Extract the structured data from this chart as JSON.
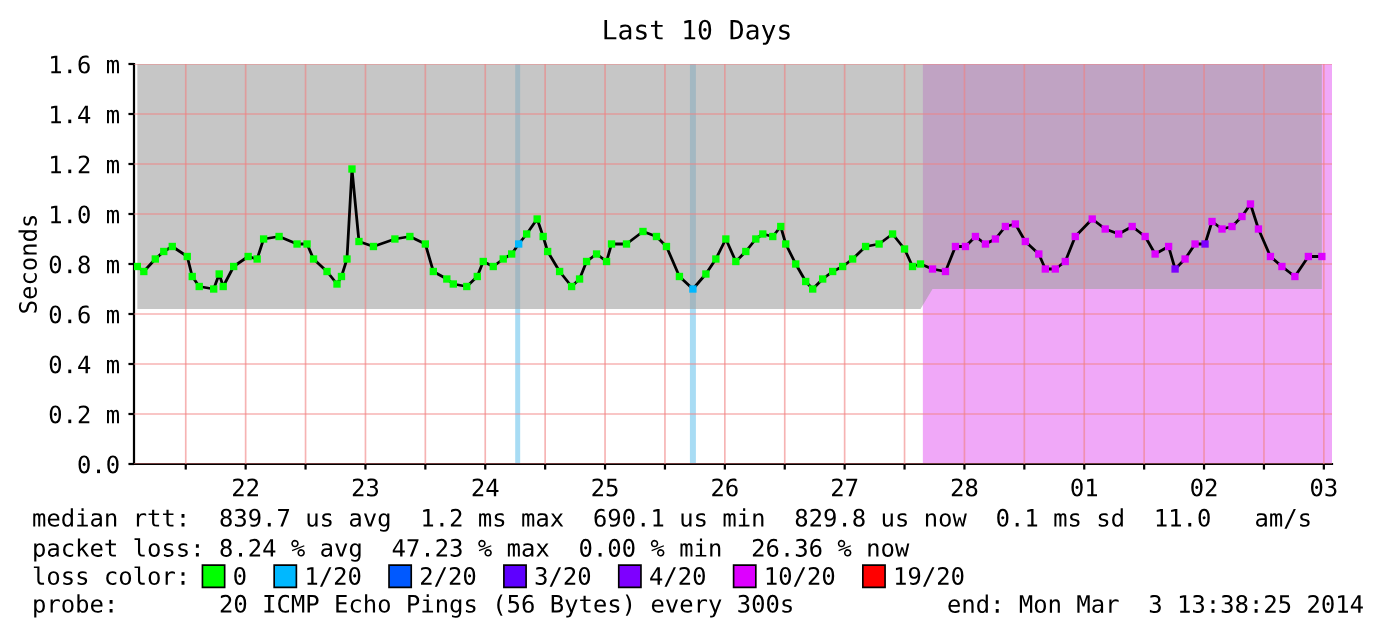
{
  "chart_data": {
    "type": "line",
    "title": "Last 10 Days",
    "ylabel": "Seconds",
    "xlim": [
      "2014-02-21T13:38",
      "2014-03-03T13:38"
    ],
    "xticks": [
      {
        "value": "2014-02-22T00:00",
        "label": null
      },
      {
        "value": "2014-02-22T12:00",
        "label": "22"
      },
      {
        "value": "2014-02-23T00:00",
        "label": null
      },
      {
        "value": "2014-02-23T12:00",
        "label": "23"
      },
      {
        "value": "2014-02-24T00:00",
        "label": null
      },
      {
        "value": "2014-02-24T12:00",
        "label": "24"
      },
      {
        "value": "2014-02-25T00:00",
        "label": null
      },
      {
        "value": "2014-02-25T12:00",
        "label": "25"
      },
      {
        "value": "2014-02-26T00:00",
        "label": null
      },
      {
        "value": "2014-02-26T12:00",
        "label": "26"
      },
      {
        "value": "2014-02-27T00:00",
        "label": null
      },
      {
        "value": "2014-02-27T12:00",
        "label": "27"
      },
      {
        "value": "2014-02-28T00:00",
        "label": null
      },
      {
        "value": "2014-02-28T12:00",
        "label": "28"
      },
      {
        "value": "2014-03-01T00:00",
        "label": null
      },
      {
        "value": "2014-03-01T12:00",
        "label": "01"
      },
      {
        "value": "2014-03-02T00:00",
        "label": null
      },
      {
        "value": "2014-03-02T12:00",
        "label": "02"
      },
      {
        "value": "2014-03-03T00:00",
        "label": null
      },
      {
        "value": "2014-03-03T12:00",
        "label": "03"
      }
    ],
    "ylim": [
      0,
      1.6
    ],
    "yticks": [
      {
        "value": 0,
        "label": "0.0"
      },
      {
        "value": 0.2,
        "label": "0.2 m"
      },
      {
        "value": 0.4,
        "label": "0.4 m"
      },
      {
        "value": 0.6,
        "label": "0.6 m"
      },
      {
        "value": 0.8,
        "label": "0.8 m"
      },
      {
        "value": 1.0,
        "label": "1.0 m"
      },
      {
        "value": 1.2,
        "label": "1.2 m"
      },
      {
        "value": 1.4,
        "label": "1.4 m"
      },
      {
        "value": 1.6,
        "label": "1.6 m"
      }
    ],
    "grid": true,
    "legend": "bottom",
    "legend_title": "loss color:",
    "bands": [
      {
        "axis": "x",
        "from": "2014-02-24T18:00",
        "to": "2014-02-24T19:00",
        "color": "#a8dcf4"
      },
      {
        "axis": "x",
        "from": "2014-02-26T05:00",
        "to": "2014-02-26T06:12",
        "color": "#a8dcf4"
      },
      {
        "axis": "x",
        "from": "2014-02-28T03:40",
        "to": "2014-03-03T13:38",
        "color": "#f0a8f8"
      }
    ],
    "series": [
      {
        "color": "#000000",
        "x": [
          "2014-02-21T14:18",
          "2014-02-21T15:36",
          "2014-02-21T17:54",
          "2014-02-21T19:36",
          "2014-02-21T21:18",
          "2014-02-22T00:18",
          "2014-02-22T01:18",
          "2014-02-22T02:42",
          "2014-02-22T05:36",
          "2014-02-22T06:42",
          "2014-02-22T07:30",
          "2014-02-22T09:36",
          "2014-02-22T12:30",
          "2014-02-22T14:18",
          "2014-02-22T15:36",
          "2014-02-22T18:42",
          "2014-02-22T22:18",
          "2014-02-23T00:18",
          "2014-02-23T01:36",
          "2014-02-23T04:18",
          "2014-02-23T06:18",
          "2014-02-23T07:12",
          "2014-02-23T08:18",
          "2014-02-23T09:18",
          "2014-02-23T10:42",
          "2014-02-23T13:36",
          "2014-02-23T17:54",
          "2014-02-23T20:54",
          "2014-02-24T00:00",
          "2014-02-24T01:36",
          "2014-02-24T04:18",
          "2014-02-24T05:36",
          "2014-02-24T08:18",
          "2014-02-24T10:24",
          "2014-02-24T11:36",
          "2014-02-24T13:36",
          "2014-02-24T15:36",
          "2014-02-24T17:18",
          "2014-02-24T18:42",
          "2014-02-24T20:18",
          "2014-02-24T22:24",
          "2014-02-24T23:36",
          "2014-02-25T00:30",
          "2014-02-25T02:54",
          "2014-02-25T05:18",
          "2014-02-25T06:54",
          "2014-02-25T08:18",
          "2014-02-25T10:18",
          "2014-02-25T12:18",
          "2014-02-25T13:18",
          "2014-02-25T16:18",
          "2014-02-25T19:36",
          "2014-02-25T22:18",
          "2014-02-26T00:18",
          "2014-02-26T02:54",
          "2014-02-26T05:36",
          "2014-02-26T08:12",
          "2014-02-26T10:12",
          "2014-02-26T12:12",
          "2014-02-26T14:12",
          "2014-02-26T16:12",
          "2014-02-26T18:12",
          "2014-02-26T19:36",
          "2014-02-26T21:36",
          "2014-02-26T23:12",
          "2014-02-27T00:12",
          "2014-02-27T02:12",
          "2014-02-27T04:12",
          "2014-02-27T05:36",
          "2014-02-27T07:36",
          "2014-02-27T09:36",
          "2014-02-27T11:36",
          "2014-02-27T13:36",
          "2014-02-27T16:12",
          "2014-02-27T18:54",
          "2014-02-27T21:36",
          "2014-02-28T00:00",
          "2014-02-28T01:36",
          "2014-02-28T03:12",
          "2014-02-28T05:36",
          "2014-02-28T08:12",
          "2014-02-28T10:12",
          "2014-02-28T12:12",
          "2014-02-28T14:12",
          "2014-02-28T16:12",
          "2014-02-28T18:12",
          "2014-02-28T20:12",
          "2014-02-28T22:12",
          "2014-03-01T00:12",
          "2014-03-01T02:54",
          "2014-03-01T04:12",
          "2014-03-01T06:12",
          "2014-03-01T08:12",
          "2014-03-01T10:12",
          "2014-03-01T13:36",
          "2014-03-01T16:12",
          "2014-03-01T18:54",
          "2014-03-01T21:36",
          "2014-03-02T00:12",
          "2014-03-02T02:12",
          "2014-03-02T04:54",
          "2014-03-02T06:12",
          "2014-03-02T08:12",
          "2014-03-02T10:12",
          "2014-03-02T12:12",
          "2014-03-02T13:36",
          "2014-03-02T15:36",
          "2014-03-02T17:36",
          "2014-03-02T19:36",
          "2014-03-02T21:18",
          "2014-03-02T22:54",
          "2014-03-03T01:18",
          "2014-03-03T03:36",
          "2014-03-03T06:12",
          "2014-03-03T08:54",
          "2014-03-03T11:36"
        ],
        "values": [
          0.79,
          0.77,
          0.82,
          0.85,
          0.87,
          0.83,
          0.75,
          0.71,
          0.7,
          0.76,
          0.71,
          0.79,
          0.83,
          0.82,
          0.9,
          0.91,
          0.88,
          0.88,
          0.82,
          0.77,
          0.72,
          0.75,
          0.82,
          1.18,
          0.89,
          0.87,
          0.9,
          0.91,
          0.88,
          0.77,
          0.74,
          0.72,
          0.71,
          0.75,
          0.81,
          0.79,
          0.82,
          0.84,
          0.88,
          0.92,
          0.98,
          0.91,
          0.85,
          0.77,
          0.71,
          0.74,
          0.81,
          0.84,
          0.81,
          0.88,
          0.88,
          0.93,
          0.91,
          0.87,
          0.75,
          0.7,
          0.76,
          0.82,
          0.9,
          0.81,
          0.85,
          0.9,
          0.92,
          0.91,
          0.95,
          0.88,
          0.8,
          0.73,
          0.7,
          0.74,
          0.77,
          0.79,
          0.82,
          0.87,
          0.88,
          0.92,
          0.86,
          0.79,
          0.8,
          0.78,
          0.77,
          0.87,
          0.87,
          0.91,
          0.88,
          0.9,
          0.95,
          0.96,
          0.89,
          0.84,
          0.78,
          0.78,
          0.81,
          0.91,
          0.98,
          0.94,
          0.92,
          0.95,
          0.91,
          0.84,
          0.87,
          0.78,
          0.82,
          0.88,
          0.88,
          0.97,
          0.94,
          0.95,
          0.99,
          1.04,
          0.94,
          0.83,
          0.79,
          0.75,
          0.83,
          0.83
        ],
        "lower": [
          0.62,
          0.62,
          0.62,
          0.62,
          0.62,
          0.62,
          0.62,
          0.62,
          0.62,
          0.62,
          0.62,
          0.62,
          0.62,
          0.62,
          0.62,
          0.62,
          0.62,
          0.62,
          0.62,
          0.62,
          0.62,
          0.62,
          0.62,
          0.62,
          0.62,
          0.62,
          0.62,
          0.62,
          0.62,
          0.62,
          0.62,
          0.62,
          0.62,
          0.62,
          0.62,
          0.62,
          0.62,
          0.62,
          0.62,
          0.62,
          0.62,
          0.62,
          0.62,
          0.62,
          0.62,
          0.62,
          0.62,
          0.62,
          0.62,
          0.62,
          0.62,
          0.62,
          0.62,
          0.62,
          0.62,
          0.62,
          0.62,
          0.62,
          0.62,
          0.62,
          0.62,
          0.62,
          0.62,
          0.62,
          0.62,
          0.62,
          0.62,
          0.62,
          0.62,
          0.62,
          0.62,
          0.62,
          0.62,
          0.62,
          0.62,
          0.62,
          0.62,
          0.62,
          0.62,
          0.7,
          0.7,
          0.7,
          0.7,
          0.7,
          0.7,
          0.7,
          0.7,
          0.7,
          0.7,
          0.7,
          0.7,
          0.7,
          0.7,
          0.7,
          0.7,
          0.7,
          0.7,
          0.7,
          0.7,
          0.7,
          0.7,
          0.7,
          0.7,
          0.7,
          0.7,
          0.7,
          0.7,
          0.7,
          0.7,
          0.7,
          0.7,
          0.7,
          0.7,
          0.7,
          0.7,
          0.7
        ],
        "upper": [
          1.6,
          1.6,
          1.6,
          1.6,
          1.6,
          1.6,
          1.6,
          1.6,
          1.6,
          1.6,
          1.6,
          1.6,
          1.6,
          1.6,
          1.6,
          1.6,
          1.6,
          1.6,
          1.6,
          1.6,
          1.6,
          1.6,
          1.6,
          1.6,
          1.6,
          1.6,
          1.6,
          1.6,
          1.6,
          1.6,
          1.6,
          1.6,
          1.6,
          1.6,
          1.6,
          1.6,
          1.6,
          1.6,
          1.6,
          1.6,
          1.6,
          1.6,
          1.6,
          1.6,
          1.6,
          1.6,
          1.6,
          1.6,
          1.6,
          1.6,
          1.6,
          1.6,
          1.6,
          1.6,
          1.6,
          1.6,
          1.6,
          1.6,
          1.6,
          1.6,
          1.6,
          1.6,
          1.6,
          1.6,
          1.6,
          1.6,
          1.6,
          1.6,
          1.6,
          1.6,
          1.6,
          1.6,
          1.6,
          1.6,
          1.6,
          1.6,
          1.6,
          1.6,
          1.6,
          1.6,
          1.6,
          1.6,
          1.6,
          1.6,
          1.6,
          1.6,
          1.6,
          1.6,
          1.6,
          1.6,
          1.6,
          1.6,
          1.6,
          1.6,
          1.6,
          1.6,
          1.6,
          1.6,
          1.6,
          1.6,
          1.6,
          1.6,
          1.6,
          1.6,
          1.6,
          1.6,
          1.6,
          1.6,
          1.6,
          1.6,
          1.6,
          1.6,
          1.6,
          1.6,
          1.6,
          1.6
        ]
      },
      {
        "type": "scatter",
        "marker": "square",
        "name": "0",
        "color": "#00ff00",
        "x": [
          "2014-02-21T14:18",
          "2014-02-21T15:36",
          "2014-02-21T17:54",
          "2014-02-21T19:36",
          "2014-02-21T21:18",
          "2014-02-22T00:18",
          "2014-02-22T01:18",
          "2014-02-22T02:42",
          "2014-02-22T05:36",
          "2014-02-22T06:42",
          "2014-02-22T07:30",
          "2014-02-22T09:36",
          "2014-02-22T12:30",
          "2014-02-22T14:18",
          "2014-02-22T15:36",
          "2014-02-22T18:42",
          "2014-02-22T22:18",
          "2014-02-23T00:18",
          "2014-02-23T01:36",
          "2014-02-23T04:18",
          "2014-02-23T06:18",
          "2014-02-23T07:12",
          "2014-02-23T08:18",
          "2014-02-23T09:18",
          "2014-02-23T10:42",
          "2014-02-23T13:36",
          "2014-02-23T17:54",
          "2014-02-23T20:54",
          "2014-02-24T00:00",
          "2014-02-24T01:36",
          "2014-02-24T04:18",
          "2014-02-24T05:36",
          "2014-02-24T08:18",
          "2014-02-24T10:24",
          "2014-02-24T11:36",
          "2014-02-24T13:36",
          "2014-02-24T15:36",
          "2014-02-24T17:18",
          "2014-02-24T20:18",
          "2014-02-24T22:24",
          "2014-02-24T23:36",
          "2014-02-25T00:30",
          "2014-02-25T02:54",
          "2014-02-25T05:18",
          "2014-02-25T06:54",
          "2014-02-25T08:18",
          "2014-02-25T10:18",
          "2014-02-25T12:18",
          "2014-02-25T13:18",
          "2014-02-25T16:18",
          "2014-02-25T19:36",
          "2014-02-25T22:18",
          "2014-02-26T00:18",
          "2014-02-26T02:54",
          "2014-02-26T08:12",
          "2014-02-26T10:12",
          "2014-02-26T12:12",
          "2014-02-26T14:12",
          "2014-02-26T16:12",
          "2014-02-26T18:12",
          "2014-02-26T19:36",
          "2014-02-26T21:36",
          "2014-02-26T23:12",
          "2014-02-27T00:12",
          "2014-02-27T02:12",
          "2014-02-27T04:12",
          "2014-02-27T05:36",
          "2014-02-27T07:36",
          "2014-02-27T09:36",
          "2014-02-27T11:36",
          "2014-02-27T13:36",
          "2014-02-27T16:12",
          "2014-02-27T18:54",
          "2014-02-27T21:36",
          "2014-02-28T00:00",
          "2014-02-28T01:36",
          "2014-02-28T03:12"
        ],
        "values": [
          0.79,
          0.77,
          0.82,
          0.85,
          0.87,
          0.83,
          0.75,
          0.71,
          0.7,
          0.76,
          0.71,
          0.79,
          0.83,
          0.82,
          0.9,
          0.91,
          0.88,
          0.88,
          0.82,
          0.77,
          0.72,
          0.75,
          0.82,
          1.18,
          0.89,
          0.87,
          0.9,
          0.91,
          0.88,
          0.77,
          0.74,
          0.72,
          0.71,
          0.75,
          0.81,
          0.79,
          0.82,
          0.84,
          0.92,
          0.98,
          0.91,
          0.85,
          0.77,
          0.71,
          0.74,
          0.81,
          0.84,
          0.81,
          0.88,
          0.88,
          0.93,
          0.91,
          0.87,
          0.75,
          0.76,
          0.82,
          0.9,
          0.81,
          0.85,
          0.9,
          0.92,
          0.91,
          0.95,
          0.88,
          0.8,
          0.73,
          0.7,
          0.74,
          0.77,
          0.79,
          0.82,
          0.87,
          0.88,
          0.92,
          0.86,
          0.79,
          0.8
        ]
      },
      {
        "type": "scatter",
        "marker": "square",
        "name": "1/20",
        "color": "#00b8ff",
        "x": [
          "2014-02-24T18:42",
          "2014-02-26T05:36"
        ],
        "values": [
          0.88,
          0.7
        ]
      },
      {
        "type": "scatter",
        "marker": "square",
        "name": "2/20",
        "color": "#0059ff"
      },
      {
        "type": "scatter",
        "marker": "square",
        "name": "3/20",
        "color": "#5e00ff"
      },
      {
        "type": "scatter",
        "marker": "square",
        "name": "4/20",
        "color": "#7e00ff",
        "x": [
          "2014-03-02T06:12",
          "2014-03-02T12:12"
        ],
        "values": [
          0.78,
          0.88
        ]
      },
      {
        "type": "scatter",
        "marker": "square",
        "name": "10/20",
        "color": "#dd00ff",
        "x": [
          "2014-02-28T05:36",
          "2014-02-28T08:12",
          "2014-02-28T10:12",
          "2014-02-28T12:12",
          "2014-02-28T14:12",
          "2014-02-28T16:12",
          "2014-02-28T18:12",
          "2014-02-28T20:12",
          "2014-02-28T22:12",
          "2014-03-01T00:12",
          "2014-03-01T02:54",
          "2014-03-01T04:12",
          "2014-03-01T06:12",
          "2014-03-01T08:12",
          "2014-03-01T10:12",
          "2014-03-01T13:36",
          "2014-03-01T16:12",
          "2014-03-01T18:54",
          "2014-03-01T21:36",
          "2014-03-02T00:12",
          "2014-03-02T02:12",
          "2014-03-02T04:54",
          "2014-03-02T08:12",
          "2014-03-02T10:12",
          "2014-03-02T13:36",
          "2014-03-02T15:36",
          "2014-03-02T17:36",
          "2014-03-02T19:36",
          "2014-03-02T21:18",
          "2014-03-02T22:54",
          "2014-03-03T01:18",
          "2014-03-03T03:36",
          "2014-03-03T06:12",
          "2014-03-03T08:54",
          "2014-03-03T11:36"
        ],
        "values": [
          0.78,
          0.77,
          0.87,
          0.87,
          0.91,
          0.88,
          0.9,
          0.95,
          0.96,
          0.89,
          0.84,
          0.78,
          0.78,
          0.81,
          0.91,
          0.98,
          0.94,
          0.92,
          0.95,
          0.91,
          0.84,
          0.87,
          0.82,
          0.88,
          0.97,
          0.94,
          0.95,
          0.99,
          1.04,
          0.94,
          0.83,
          0.79,
          0.75,
          0.83,
          0.83
        ]
      },
      {
        "type": "scatter",
        "marker": "square",
        "name": "19/20",
        "color": "#ff0000"
      }
    ],
    "annotations": [
      "median rtt:  839.7 us avg  1.2 ms max  690.1 us min  829.8 us now  0.1 ms sd  11.0   am/s",
      "packet loss: 8.24 % avg  47.23 % max  0.00 % min  26.36 % now",
      "probe:       20 ICMP Echo Pings (56 Bytes) every 300s",
      "end: Mon Mar  3 13:38:25 2014"
    ]
  }
}
